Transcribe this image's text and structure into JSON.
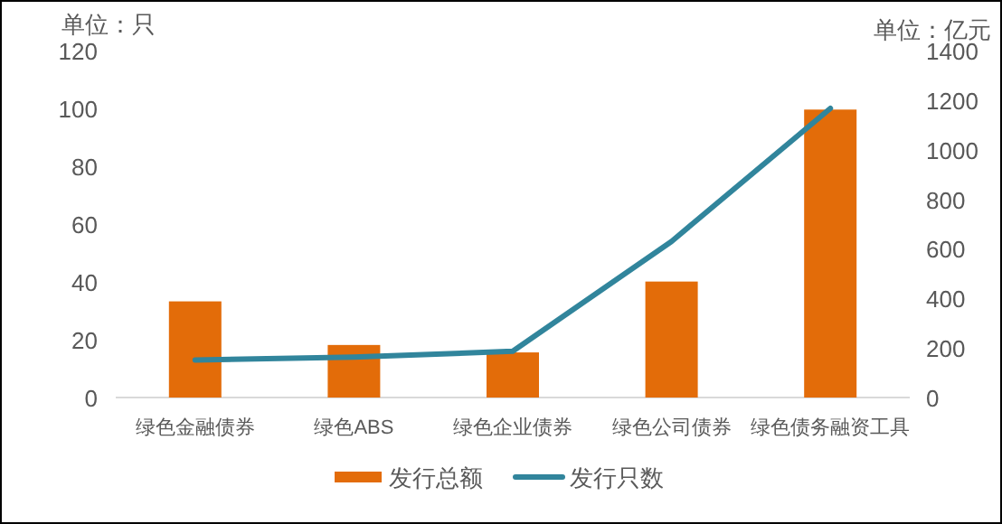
{
  "chart_data": {
    "type": "bar",
    "categories": [
      "绿色金融债券",
      "绿色ABS",
      "绿色企业债券",
      "绿色公司债券",
      "绿色债务融资工具"
    ],
    "ylabel": "单位：只",
    "y2label": "单位：亿元",
    "ylim": [
      0,
      120
    ],
    "yticks": [
      0,
      20,
      40,
      60,
      80,
      100,
      120
    ],
    "y2lim": [
      0,
      1400
    ],
    "y2ticks": [
      0,
      200,
      400,
      600,
      800,
      1000,
      1200,
      1400
    ],
    "series": [
      {
        "name": "发行总额",
        "axis": "y2",
        "color": "#e36c09",
        "values": [
          388,
          212,
          182,
          468,
          1162
        ]
      },
      {
        "name": "发行只数",
        "type": "line",
        "axis": "y",
        "color": "#31859c",
        "values": [
          13,
          14,
          16,
          54,
          100
        ]
      }
    ],
    "grid": false,
    "legend": "bottom",
    "marker": "none"
  }
}
